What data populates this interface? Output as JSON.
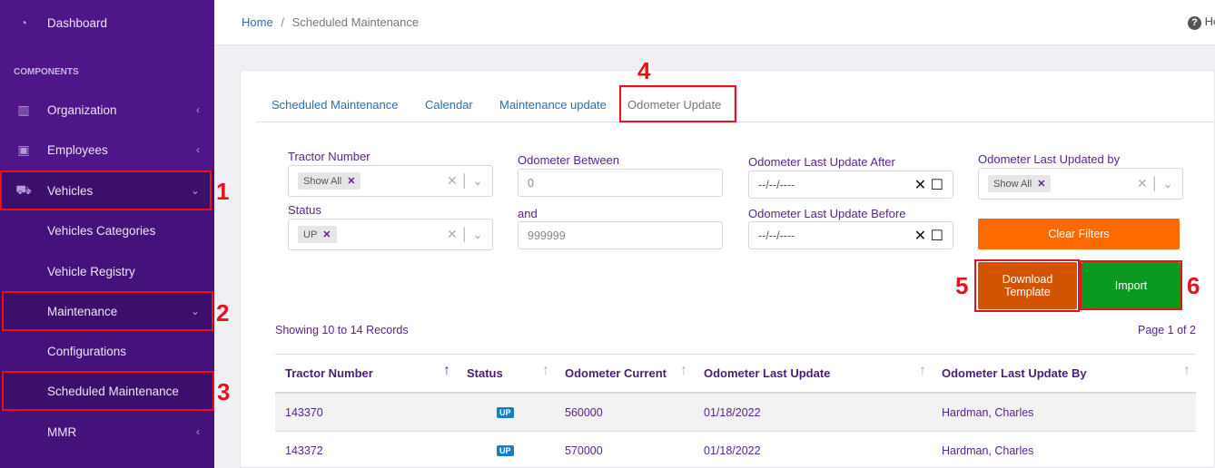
{
  "sidebar": {
    "items": [
      {
        "label": "Dashboard",
        "icon": "dashboard-gauge-icon"
      },
      {
        "section": "COMPONENTS"
      },
      {
        "label": "Organization",
        "icon": "building-icon"
      },
      {
        "label": "Employees",
        "icon": "employee-card-icon"
      },
      {
        "label": "Vehicles",
        "icon": "truck-icon"
      },
      {
        "label": "Vehicles Categories"
      },
      {
        "label": "Vehicle Registry"
      },
      {
        "label": "Maintenance"
      },
      {
        "label": "Configurations"
      },
      {
        "label": "Scheduled Maintenance"
      },
      {
        "label": "MMR"
      }
    ]
  },
  "breadcrumb": {
    "home": "Home",
    "sep": "/",
    "current": "Scheduled Maintenance"
  },
  "help": {
    "label": "He"
  },
  "tabs": [
    "Scheduled Maintenance",
    "Calendar",
    "Maintenance update",
    "Odometer Update"
  ],
  "filters": {
    "tractor_label": "Tractor Number",
    "tractor_chip": "Show All",
    "status_label": "Status",
    "status_chip": "UP",
    "odo_between_label": "Odometer Between",
    "odo_min": "0",
    "and_label": "and",
    "odo_max": "999999",
    "after_label": "Odometer Last Update After",
    "after_placeholder": "--/--/----",
    "before_label": "Odometer Last Update Before",
    "before_placeholder": "--/--/----",
    "by_label": "Odometer Last Updated by",
    "by_chip": "Show All",
    "clear": "Clear Filters",
    "download": "Download Template",
    "import": "Import"
  },
  "records": "Showing 10 to 14 Records",
  "page": "Page 1 of 2",
  "table": {
    "headers": [
      "Tractor Number",
      "Status",
      "Odometer Current",
      "Odometer Last Update",
      "Odometer Last Update By"
    ],
    "rows": [
      [
        "143370",
        "UP",
        "560000",
        "01/18/2022",
        "Hardman, Charles"
      ],
      [
        "143372",
        "UP",
        "570000",
        "01/18/2022",
        "Hardman, Charles"
      ]
    ]
  },
  "annotations": [
    "1",
    "2",
    "3",
    "4",
    "5",
    "6"
  ],
  "colors": {
    "sidebar": "#4f1689",
    "clear": "#ff6a00",
    "download": "#d35400",
    "import": "#0a9a1f",
    "annotation": "#e8121e"
  }
}
